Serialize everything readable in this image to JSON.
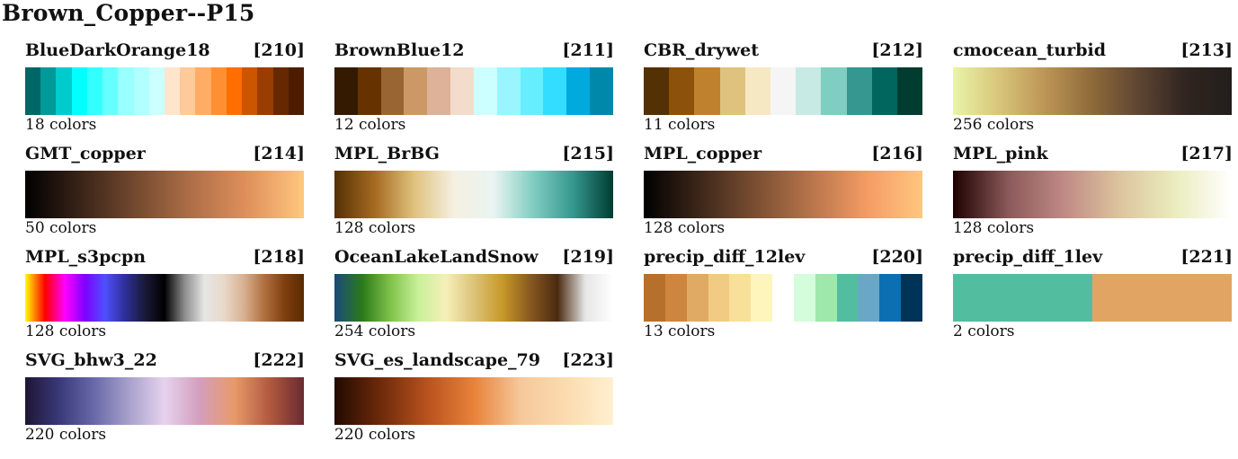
{
  "page": {
    "title": "Brown_Copper--P15"
  },
  "colormaps": [
    {
      "name": "BlueDarkOrange18",
      "id": "[210]",
      "count_label": "18 colors",
      "discrete": true,
      "colors": [
        "#006666",
        "#009999",
        "#00cccc",
        "#00ffff",
        "#33ffff",
        "#66ffff",
        "#99ffff",
        "#b2ffff",
        "#ccffff",
        "#ffe5cc",
        "#ffca99",
        "#ffad66",
        "#ff8f33",
        "#ff6e00",
        "#cc5500",
        "#993d00",
        "#662800",
        "#4d1c00"
      ]
    },
    {
      "name": "BrownBlue12",
      "id": "[211]",
      "count_label": "12 colors",
      "discrete": true,
      "colors": [
        "#331a00",
        "#663300",
        "#996633",
        "#cc9966",
        "#ddb299",
        "#f3dccc",
        "#ccffff",
        "#99f5ff",
        "#66eeff",
        "#33ddff",
        "#00aadd",
        "#0088aa"
      ]
    },
    {
      "name": "CBR_drywet",
      "id": "[212]",
      "count_label": "11 colors",
      "discrete": true,
      "colors": [
        "#543005",
        "#8c510a",
        "#bf812d",
        "#dfc27d",
        "#f6e8c3",
        "#f5f5f5",
        "#c7eae5",
        "#80cdc1",
        "#35978f",
        "#01665e",
        "#003c30"
      ]
    },
    {
      "name": "cmocean_turbid",
      "id": "[213]",
      "count_label": "256 colors",
      "discrete": false,
      "colors": [
        "#e8f5a8",
        "#d8c47a",
        "#bb9454",
        "#8e6a3a",
        "#5e4532",
        "#302520",
        "#221e1b"
      ]
    },
    {
      "name": "GMT_copper",
      "id": "[214]",
      "count_label": "50 colors",
      "discrete": false,
      "colors": [
        "#000000",
        "#3a2418",
        "#754a2f",
        "#b06f48",
        "#e0915c",
        "#ffc87f"
      ]
    },
    {
      "name": "MPL_BrBG",
      "id": "[215]",
      "count_label": "128 colors",
      "discrete": false,
      "colors": [
        "#543005",
        "#a56a1f",
        "#dfc27d",
        "#f5f0e2",
        "#e9f4f2",
        "#80cdc1",
        "#35978f",
        "#003c30"
      ]
    },
    {
      "name": "MPL_copper",
      "id": "[216]",
      "count_label": "128 colors",
      "discrete": false,
      "colors": [
        "#000000",
        "#3d271a",
        "#7a4e32",
        "#b7744b",
        "#f49b64",
        "#ffc77f"
      ]
    },
    {
      "name": "MPL_pink",
      "id": "[217]",
      "count_label": "128 colors",
      "discrete": false,
      "colors": [
        "#1e0000",
        "#8c5a5a",
        "#c08a86",
        "#dcc59e",
        "#ebedbf",
        "#ffffff"
      ]
    },
    {
      "name": "MPL_s3pcpn",
      "id": "[218]",
      "count_label": "128 colors",
      "discrete": false,
      "colors": [
        "#ffff00",
        "#ff0000",
        "#ff00ff",
        "#7f00ff",
        "#5050ff",
        "#2f2f9a",
        "#1a1a3a",
        "#000000",
        "#8c8c8c",
        "#e6e6e6",
        "#e8d8c8",
        "#d8b090",
        "#b07040",
        "#804010",
        "#5a2a00"
      ]
    },
    {
      "name": "OceanLakeLandSnow",
      "id": "[219]",
      "count_label": "254 colors",
      "discrete": false,
      "colors": [
        "#1a4a7a",
        "#2b7a1a",
        "#7fc24a",
        "#c8f09a",
        "#f5f0b8",
        "#dcc37a",
        "#c99a2a",
        "#8a5a20",
        "#4a2a10",
        "#e6e6e6",
        "#ffffff"
      ]
    },
    {
      "name": "precip_diff_12lev",
      "id": "[220]",
      "count_label": "13 colors",
      "discrete": true,
      "colors": [
        "#b6702b",
        "#cd8540",
        "#e1aa64",
        "#f1cb84",
        "#f8e09a",
        "#fef5bc",
        "#ffffff",
        "#d4fddc",
        "#9ee8ac",
        "#52bd9f",
        "#6aa7c7",
        "#0c6fb1",
        "#003358"
      ]
    },
    {
      "name": "precip_diff_1lev",
      "id": "[221]",
      "count_label": "2 colors",
      "discrete": true,
      "colors": [
        "#52bd9f",
        "#e1a462"
      ]
    },
    {
      "name": "SVG_bhw3_22",
      "id": "[222]",
      "count_label": "220 colors",
      "discrete": false,
      "colors": [
        "#1e1535",
        "#3a3a7a",
        "#6a6aaa",
        "#a9a2cc",
        "#e6d2ee",
        "#d39fbd",
        "#e89a6a",
        "#b25a40",
        "#6a2a30"
      ]
    },
    {
      "name": "SVG_es_landscape_79",
      "id": "[223]",
      "count_label": "220 colors",
      "discrete": false,
      "colors": [
        "#220a00",
        "#6e2a0a",
        "#b8521e",
        "#e8823a",
        "#f5c89a",
        "#fbdcb0",
        "#fff0d0"
      ]
    }
  ]
}
